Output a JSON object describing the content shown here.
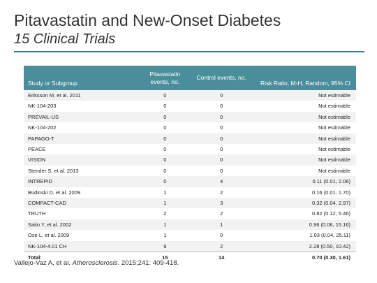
{
  "slide": {
    "title": "Pitavastatin and New-Onset Diabetes",
    "subtitle": "15 Clinical Trials"
  },
  "table": {
    "headers": {
      "study": "Study or Subgroup",
      "pitavastatin": "Pitavastatin events, no.",
      "control": "Control events, no.",
      "risk_ratio": "Risk Ratio, M-H, Random, 95% CI"
    },
    "rows": [
      {
        "study": "Eriksson M, et al. 2011",
        "pitavastatin": "0",
        "control": "0",
        "risk_ratio": "Not estimable"
      },
      {
        "study": "NK-104-203",
        "pitavastatin": "0",
        "control": "0",
        "risk_ratio": "Not estimable"
      },
      {
        "study": "PREVAIL-US",
        "pitavastatin": "0",
        "control": "0",
        "risk_ratio": "Not estimable"
      },
      {
        "study": "NK-104-202",
        "pitavastatin": "0",
        "control": "0",
        "risk_ratio": "Not estimable"
      },
      {
        "study": "PAPAGO-T",
        "pitavastatin": "0",
        "control": "0",
        "risk_ratio": "Not estimable"
      },
      {
        "study": "PEACE",
        "pitavastatin": "0",
        "control": "0",
        "risk_ratio": "Not estimable"
      },
      {
        "study": "VISION",
        "pitavastatin": "0",
        "control": "0",
        "risk_ratio": "Not estimable"
      },
      {
        "study": "Stender S, et al. 2013",
        "pitavastatin": "0",
        "control": "0",
        "risk_ratio": "Not estimable"
      },
      {
        "study": "INTREPID",
        "pitavastatin": "0",
        "control": "4",
        "risk_ratio": "0.11 (0.01, 2.06)"
      },
      {
        "study": "Budinski D, et al. 2009",
        "pitavastatin": "1",
        "control": "2",
        "risk_ratio": "0.16 (0.01, 1.70)"
      },
      {
        "study": "COMPACT-CAD",
        "pitavastatin": "1",
        "control": "3",
        "risk_ratio": "0.32 (0.04, 2.97)"
      },
      {
        "study": "TRUTH",
        "pitavastatin": "2",
        "control": "2",
        "risk_ratio": "0.82 (0.12, 5.46)"
      },
      {
        "study": "Saito Y, et al. 2002",
        "pitavastatin": "1",
        "control": "1",
        "risk_ratio": "0.96 (0.06, 15.16)"
      },
      {
        "study": "Ose L, et al. 2009",
        "pitavastatin": "1",
        "control": "0",
        "risk_ratio": "1.03 (0.04, 25.11)"
      },
      {
        "study": "NK-104-4.01 CH",
        "pitavastatin": "9",
        "control": "2",
        "risk_ratio": "2.28 (0.50, 10.42)"
      }
    ],
    "total": {
      "label": "Total:",
      "pitavastatin": "15",
      "control": "14",
      "risk_ratio": "0.70 (0.30, 1.61)"
    }
  },
  "citation": {
    "authors": "Vallejo-Vaz A, et al.",
    "journal": "Atherosclerosis",
    "details": ". 2015;241: 409-418."
  }
}
